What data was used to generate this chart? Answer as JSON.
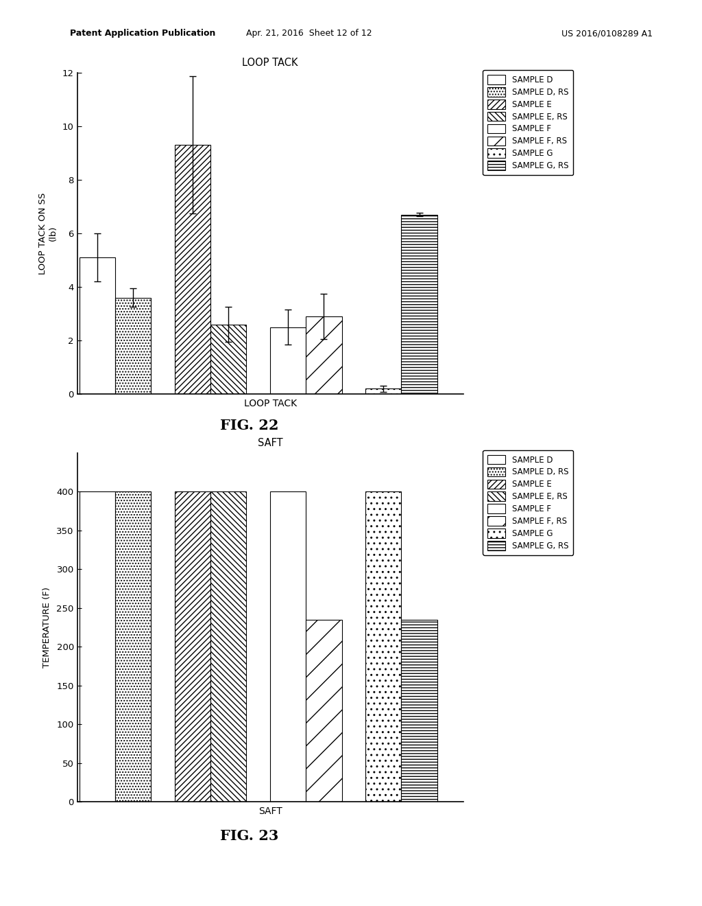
{
  "fig22": {
    "title": "LOOP TACK",
    "xlabel": "LOOP TACK",
    "ylabel": "LOOP TACK ON SS\n(lb)",
    "ylim": [
      0,
      12
    ],
    "yticks": [
      0,
      2,
      4,
      6,
      8,
      10,
      12
    ],
    "values": [
      5.1,
      3.6,
      9.3,
      2.6,
      2.5,
      2.9,
      0.2,
      6.7
    ],
    "errors": [
      0.9,
      0.35,
      2.55,
      0.65,
      0.65,
      0.85,
      0.12,
      0.07
    ],
    "fig_label": "FIG. 22"
  },
  "fig23": {
    "title": "SAFT",
    "xlabel": "SAFT",
    "ylabel": "TEMPERATURE (F)",
    "ylim": [
      0,
      450
    ],
    "yticks": [
      0,
      50,
      100,
      150,
      200,
      250,
      300,
      350,
      400
    ],
    "values": [
      400,
      400,
      400,
      400,
      400,
      235,
      400,
      235
    ],
    "fig_label": "FIG. 23"
  },
  "legend_labels": [
    "SAMPLE D",
    "SAMPLE D, RS",
    "SAMPLE E",
    "SAMPLE E, RS",
    "SAMPLE F",
    "SAMPLE F, RS",
    "SAMPLE G",
    "SAMPLE G, RS"
  ],
  "background_color": "#ffffff",
  "header_left": "Patent Application Publication",
  "header_mid": "Apr. 21, 2016  Sheet 12 of 12",
  "header_right": "US 2016/0108289 A1"
}
